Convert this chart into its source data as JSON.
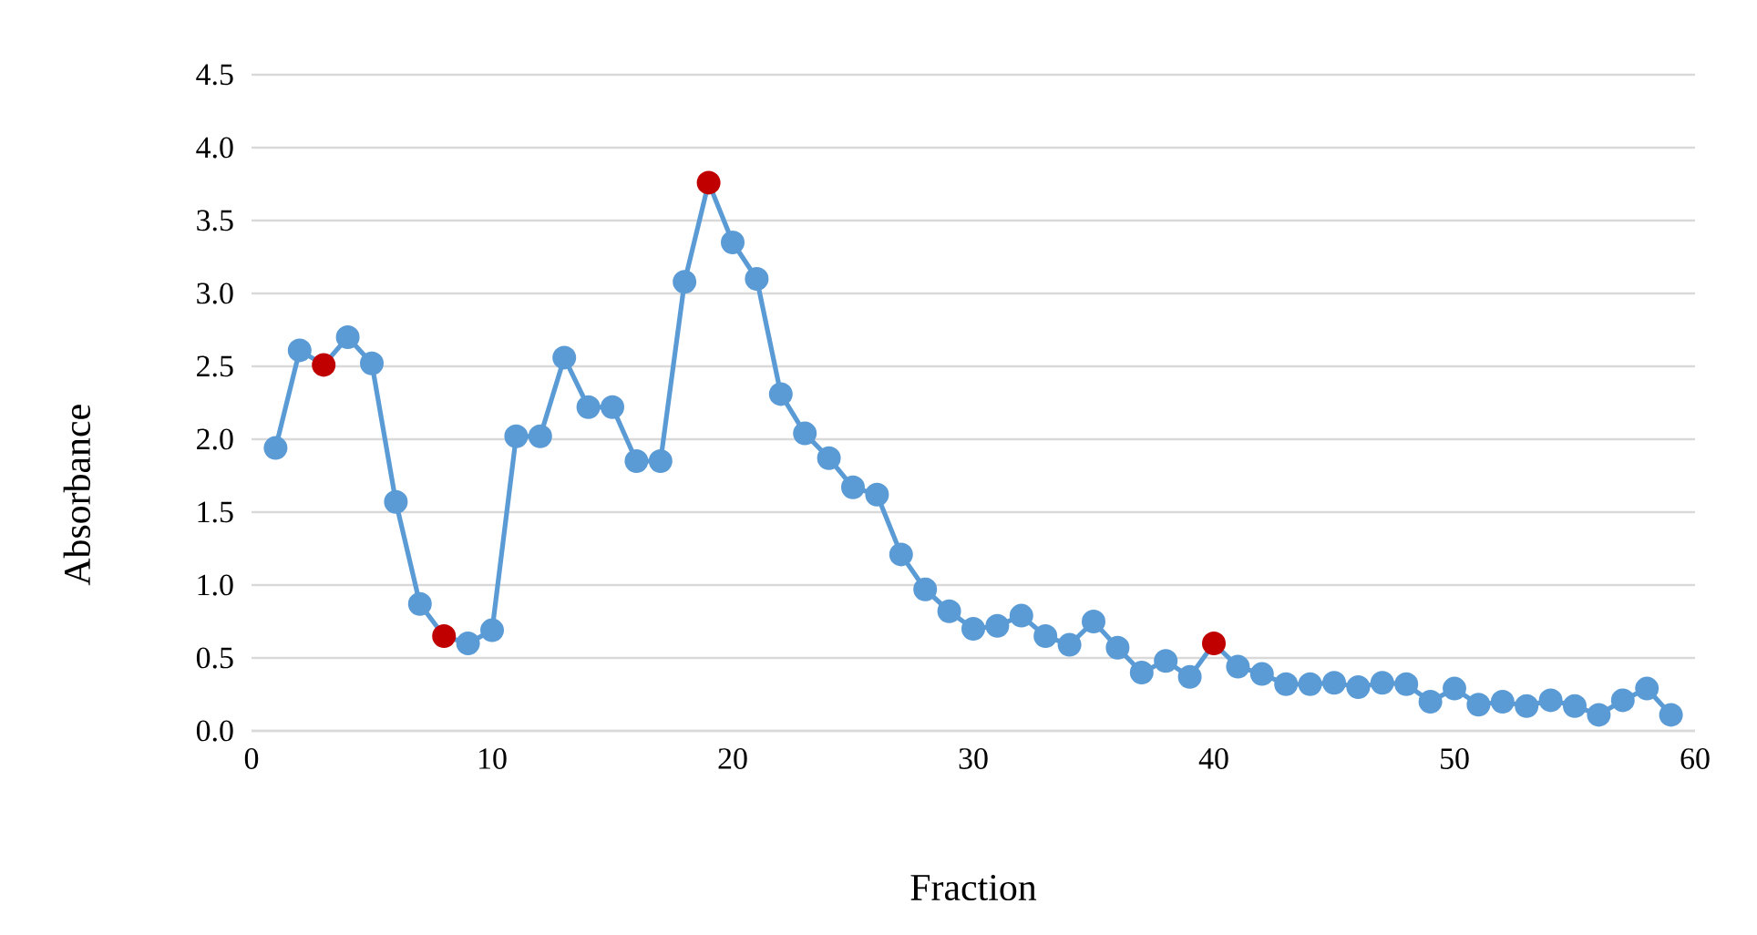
{
  "chart_data": {
    "type": "line",
    "xlabel": "Fraction",
    "ylabel": "Absorbance",
    "x": [
      1,
      2,
      3,
      4,
      5,
      6,
      7,
      8,
      9,
      10,
      11,
      12,
      13,
      14,
      15,
      16,
      17,
      18,
      19,
      20,
      21,
      22,
      23,
      24,
      25,
      26,
      27,
      28,
      29,
      30,
      31,
      32,
      33,
      34,
      35,
      36,
      37,
      38,
      39,
      40,
      41,
      42,
      43,
      44,
      45,
      46,
      47,
      48,
      49,
      50,
      51,
      52,
      53,
      54,
      55,
      56,
      57,
      58,
      59
    ],
    "series": [
      {
        "color": "#5b9bd5",
        "values": [
          1.94,
          2.61,
          2.51,
          2.7,
          2.52,
          1.57,
          0.87,
          0.65,
          0.6,
          0.69,
          2.02,
          2.02,
          2.56,
          2.22,
          2.22,
          1.85,
          1.85,
          3.08,
          3.76,
          3.35,
          3.1,
          2.31,
          2.04,
          1.87,
          1.67,
          1.62,
          1.21,
          0.97,
          0.82,
          0.7,
          0.72,
          0.79,
          0.65,
          0.59,
          0.75,
          0.57,
          0.4,
          0.48,
          0.37,
          0.6,
          0.44,
          0.39,
          0.32,
          0.32,
          0.33,
          0.3,
          0.33,
          0.32,
          0.2,
          0.29,
          0.18,
          0.2,
          0.17,
          0.21,
          0.17,
          0.11,
          0.21,
          0.29,
          0.11
        ],
        "colors": [
          "#5b9bd5",
          "#5b9bd5",
          "#c00000",
          "#5b9bd5",
          "#5b9bd5",
          "#5b9bd5",
          "#5b9bd5",
          "#c00000",
          "#5b9bd5",
          "#5b9bd5",
          "#5b9bd5",
          "#5b9bd5",
          "#5b9bd5",
          "#5b9bd5",
          "#5b9bd5",
          "#5b9bd5",
          "#5b9bd5",
          "#5b9bd5",
          "#c00000",
          "#5b9bd5",
          "#5b9bd5",
          "#5b9bd5",
          "#5b9bd5",
          "#5b9bd5",
          "#5b9bd5",
          "#5b9bd5",
          "#5b9bd5",
          "#5b9bd5",
          "#5b9bd5",
          "#5b9bd5",
          "#5b9bd5",
          "#5b9bd5",
          "#5b9bd5",
          "#5b9bd5",
          "#5b9bd5",
          "#5b9bd5",
          "#5b9bd5",
          "#5b9bd5",
          "#5b9bd5",
          "#c00000",
          "#5b9bd5",
          "#5b9bd5",
          "#5b9bd5",
          "#5b9bd5",
          "#5b9bd5",
          "#5b9bd5",
          "#5b9bd5",
          "#5b9bd5",
          "#5b9bd5",
          "#5b9bd5",
          "#5b9bd5",
          "#5b9bd5",
          "#5b9bd5",
          "#5b9bd5",
          "#5b9bd5",
          "#5b9bd5",
          "#5b9bd5",
          "#5b9bd5",
          "#5b9bd5"
        ]
      }
    ],
    "xlim": [
      0,
      60
    ],
    "xticks": [
      0,
      10,
      20,
      30,
      40,
      50,
      60
    ],
    "ylim": [
      0,
      4.5
    ],
    "yticks": [
      {
        "value": 0,
        "label": "0.0"
      },
      0.5,
      {
        "value": 1,
        "label": "1.0"
      },
      1.5,
      {
        "value": 2,
        "label": "2.0"
      },
      2.5,
      {
        "value": 3,
        "label": "3.0"
      },
      3.5,
      {
        "value": 4,
        "label": "4.0"
      },
      4.5
    ],
    "grid": "y",
    "marker": "circle",
    "line_style": "solid"
  }
}
